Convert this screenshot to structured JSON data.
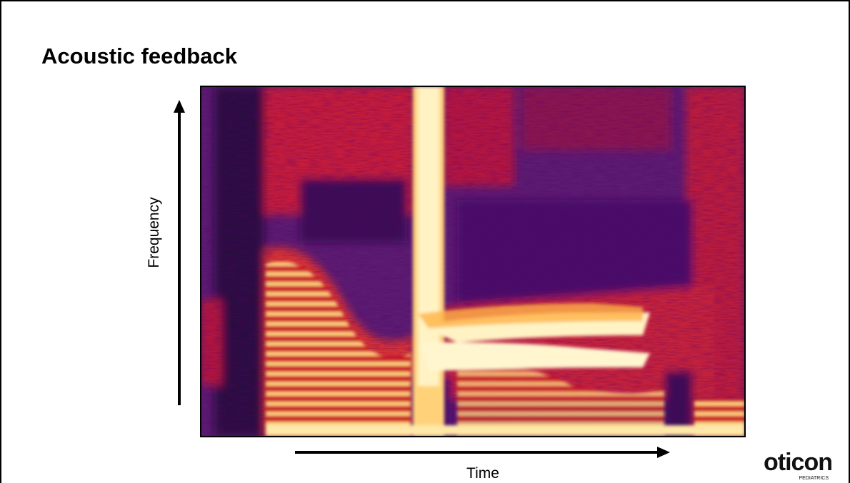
{
  "header": {
    "title": "Acoustic feedback"
  },
  "figure": {
    "y_axis_label": "Frequency",
    "x_axis_label": "Time"
  },
  "logo": {
    "name": "oticon",
    "subtitle": "PEDIATRICS"
  }
}
